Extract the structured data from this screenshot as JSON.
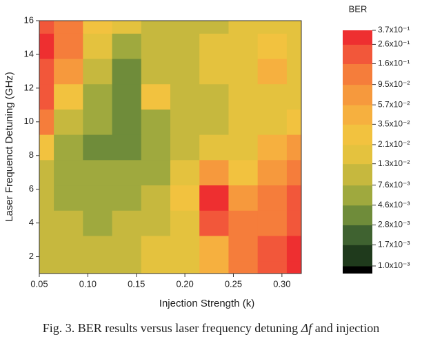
{
  "chart_data": {
    "type": "heatmap",
    "x": [
      0.05,
      0.08,
      0.11,
      0.14,
      0.17,
      0.2,
      0.23,
      0.26,
      0.29,
      0.32
    ],
    "y": [
      1,
      2.5,
      4,
      5.5,
      7,
      8.5,
      10,
      11.5,
      13,
      14.5,
      16
    ],
    "z": [
      [
        0.012,
        0.012,
        0.012,
        0.012,
        0.014,
        0.02,
        0.04,
        0.1,
        0.2,
        0.3
      ],
      [
        0.012,
        0.01,
        0.01,
        0.01,
        0.013,
        0.02,
        0.05,
        0.12,
        0.2,
        0.3
      ],
      [
        0.01,
        0.008,
        0.007,
        0.008,
        0.01,
        0.02,
        0.2,
        0.1,
        0.15,
        0.25
      ],
      [
        0.01,
        0.007,
        0.006,
        0.006,
        0.008,
        0.03,
        0.3,
        0.06,
        0.12,
        0.2
      ],
      [
        0.012,
        0.005,
        0.005,
        0.005,
        0.007,
        0.015,
        0.06,
        0.03,
        0.08,
        0.15
      ],
      [
        0.03,
        0.006,
        0.004,
        0.004,
        0.006,
        0.012,
        0.015,
        0.02,
        0.05,
        0.08
      ],
      [
        0.1,
        0.01,
        0.005,
        0.004,
        0.006,
        0.01,
        0.012,
        0.015,
        0.02,
        0.03
      ],
      [
        0.2,
        0.03,
        0.006,
        0.004,
        0.03,
        0.01,
        0.012,
        0.015,
        0.02,
        0.02
      ],
      [
        0.25,
        0.06,
        0.008,
        0.004,
        0.01,
        0.012,
        0.015,
        0.02,
        0.04,
        0.02
      ],
      [
        0.3,
        0.15,
        0.02,
        0.006,
        0.012,
        0.012,
        0.015,
        0.02,
        0.03,
        0.02
      ],
      [
        0.2,
        0.1,
        0.03,
        0.015,
        0.012,
        0.012,
        0.012,
        0.015,
        0.02,
        0.02
      ]
    ],
    "xlim": [
      0.05,
      0.32
    ],
    "ylim": [
      1,
      16
    ],
    "xticks": [
      0.05,
      {
        "value": 0.1,
        "label": "0.10"
      },
      0.15,
      {
        "value": 0.2,
        "label": "0.20"
      },
      0.25,
      {
        "value": 0.3,
        "label": "0.30"
      }
    ],
    "yticks": [
      2,
      4,
      6,
      8,
      10,
      12,
      14,
      16
    ],
    "xlabel": "Injection Strength (k)",
    "ylabel": "Laser Frequenct Detuning (GHz)",
    "colorbar": {
      "title": "BER",
      "log": true,
      "ticks": [
        {
          "value": 0.001,
          "label": "1.0x10⁻³"
        },
        {
          "value": 0.0017,
          "label": "1.7x10⁻³"
        },
        {
          "value": 0.0028,
          "label": "2.8x10⁻³"
        },
        {
          "value": 0.0046,
          "label": "4.6x10⁻³"
        },
        {
          "value": 0.0076,
          "label": "7.6x10⁻³"
        },
        {
          "value": 0.013,
          "label": "1.3x10⁻²"
        },
        {
          "value": 0.021,
          "label": "2.1x10⁻²"
        },
        {
          "value": 0.035,
          "label": "3.5x10⁻²"
        },
        {
          "value": 0.057,
          "label": "5.7x10⁻²"
        },
        {
          "value": 0.095,
          "label": "9.5x10⁻²"
        },
        {
          "value": 0.16,
          "label": "1.6x10⁻¹"
        },
        {
          "value": 0.26,
          "label": "2.6x10⁻¹"
        },
        {
          "value": 0.37,
          "label": "3.7x10⁻¹"
        }
      ],
      "colors": [
        "#1f3a1c",
        "#3f6230",
        "#6f8c3a",
        "#9fa93e",
        "#c6b83e",
        "#e4c23e",
        "#f2c23f",
        "#f6b03f",
        "#f6993d",
        "#f57d3b",
        "#f2573a",
        "#ee2f30"
      ],
      "below_color": "#000000"
    },
    "caption": [
      "Fig. 3. BER results versus laser frequency detuning ",
      "Δf",
      " and injection"
    ]
  }
}
